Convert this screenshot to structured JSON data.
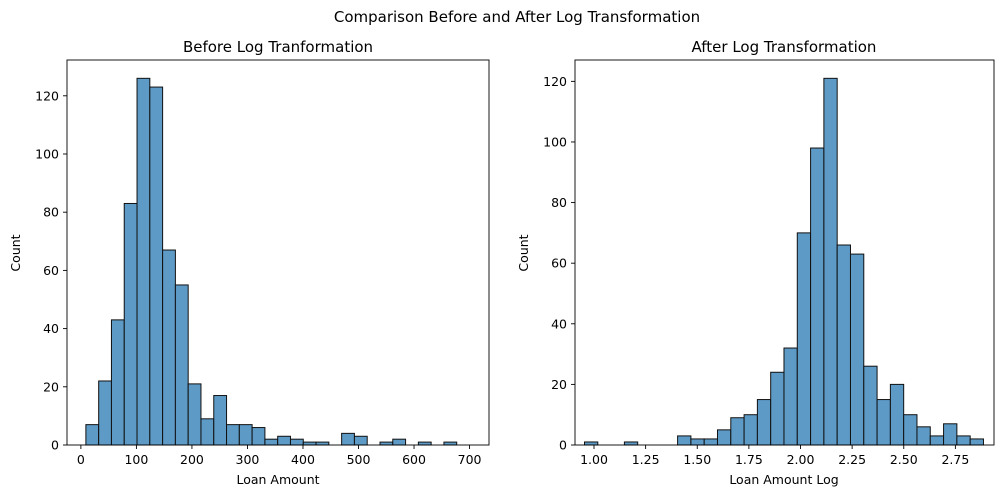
{
  "suptitle": "Comparison Before and After Log Transformation",
  "chart_data": [
    {
      "type": "bar",
      "subtype": "histogram",
      "title": "Before Log Tranformation",
      "xlabel": "Loan Amount",
      "ylabel": "Count",
      "xlim": [
        -25,
        735
      ],
      "ylim": [
        0,
        132.3
      ],
      "xticks": [
        0,
        100,
        200,
        300,
        400,
        500,
        600,
        700
      ],
      "yticks": [
        0,
        20,
        40,
        60,
        80,
        100,
        120
      ],
      "bin_start": 9,
      "bin_width": 23.03,
      "values": [
        7,
        22,
        43,
        83,
        126,
        123,
        67,
        55,
        21,
        9,
        17,
        7,
        7,
        6,
        2,
        3,
        2,
        1,
        1,
        0,
        4,
        3,
        0,
        1,
        2,
        0,
        1,
        0,
        1
      ],
      "color": "#1f77b4",
      "grid": false,
      "legend": "none"
    },
    {
      "type": "bar",
      "subtype": "histogram",
      "title": "After Log Transformation",
      "xlabel": "Loan Amount Log",
      "ylabel": "Count",
      "xlim": [
        0.908,
        2.937
      ],
      "ylim": [
        0,
        127.05
      ],
      "xticks": [
        1.0,
        1.25,
        1.5,
        1.75,
        2.0,
        2.25,
        2.5,
        2.75
      ],
      "xtick_labels": [
        "1.00",
        "1.25",
        "1.50",
        "1.75",
        "2.00",
        "2.25",
        "2.50",
        "2.75"
      ],
      "yticks": [
        0,
        20,
        40,
        60,
        80,
        100,
        120
      ],
      "bin_start": 0.954,
      "bin_width": 0.0644,
      "values": [
        1,
        0,
        0,
        1,
        0,
        0,
        0,
        3,
        2,
        2,
        5,
        9,
        10,
        15,
        24,
        32,
        70,
        98,
        121,
        66,
        63,
        26,
        15,
        20,
        10,
        6,
        3,
        7,
        3,
        2
      ],
      "color": "#1f77b4",
      "grid": false,
      "legend": "none"
    }
  ]
}
